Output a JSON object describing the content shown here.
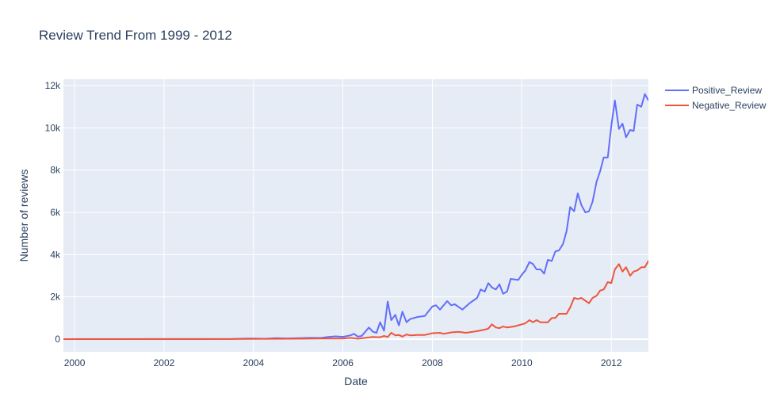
{
  "chart_data": {
    "type": "line",
    "title": "Review Trend From 1999 - 2012",
    "xlabel": "Date",
    "ylabel": "Number of reviews",
    "xlim": [
      1999.75,
      2012.83
    ],
    "ylim": [
      -600,
      12300
    ],
    "x_ticks": [
      2000,
      2002,
      2004,
      2006,
      2008,
      2010,
      2012
    ],
    "x_tick_labels": [
      "2000",
      "2002",
      "2004",
      "2006",
      "2008",
      "2010",
      "2012"
    ],
    "y_ticks": [
      0,
      2000,
      4000,
      6000,
      8000,
      10000,
      12000
    ],
    "y_tick_labels": [
      "0",
      "2k",
      "4k",
      "6k",
      "8k",
      "10k",
      "12k"
    ],
    "grid": true,
    "legend_position": "top-right",
    "colors": {
      "plot_bg": "#e5ecf6",
      "grid": "#ffffff",
      "positive": "#636efa",
      "negative": "#ef553b"
    },
    "series": [
      {
        "name": "Positive_Review",
        "color": "#636efa",
        "points": [
          [
            1999.75,
            0
          ],
          [
            2000.0,
            2
          ],
          [
            2001.0,
            3
          ],
          [
            2002.0,
            3
          ],
          [
            2003.0,
            5
          ],
          [
            2003.5,
            8
          ],
          [
            2003.83,
            30
          ],
          [
            2004.0,
            25
          ],
          [
            2004.25,
            20
          ],
          [
            2004.5,
            45
          ],
          [
            2004.75,
            35
          ],
          [
            2005.0,
            50
          ],
          [
            2005.25,
            60
          ],
          [
            2005.5,
            55
          ],
          [
            2005.67,
            100
          ],
          [
            2005.83,
            130
          ],
          [
            2006.0,
            110
          ],
          [
            2006.17,
            180
          ],
          [
            2006.25,
            250
          ],
          [
            2006.33,
            120
          ],
          [
            2006.42,
            150
          ],
          [
            2006.5,
            350
          ],
          [
            2006.58,
            550
          ],
          [
            2006.67,
            350
          ],
          [
            2006.75,
            300
          ],
          [
            2006.83,
            800
          ],
          [
            2006.92,
            400
          ],
          [
            2007.0,
            1780
          ],
          [
            2007.08,
            900
          ],
          [
            2007.17,
            1150
          ],
          [
            2007.25,
            650
          ],
          [
            2007.33,
            1300
          ],
          [
            2007.42,
            800
          ],
          [
            2007.5,
            950
          ],
          [
            2007.67,
            1050
          ],
          [
            2007.83,
            1100
          ],
          [
            2008.0,
            1550
          ],
          [
            2008.08,
            1600
          ],
          [
            2008.17,
            1400
          ],
          [
            2008.33,
            1800
          ],
          [
            2008.42,
            1600
          ],
          [
            2008.5,
            1650
          ],
          [
            2008.67,
            1400
          ],
          [
            2008.83,
            1700
          ],
          [
            2009.0,
            1950
          ],
          [
            2009.08,
            2350
          ],
          [
            2009.17,
            2250
          ],
          [
            2009.25,
            2650
          ],
          [
            2009.33,
            2450
          ],
          [
            2009.42,
            2350
          ],
          [
            2009.5,
            2600
          ],
          [
            2009.58,
            2150
          ],
          [
            2009.67,
            2250
          ],
          [
            2009.75,
            2850
          ],
          [
            2009.92,
            2800
          ],
          [
            2010.0,
            3050
          ],
          [
            2010.08,
            3250
          ],
          [
            2010.17,
            3650
          ],
          [
            2010.25,
            3550
          ],
          [
            2010.33,
            3300
          ],
          [
            2010.42,
            3300
          ],
          [
            2010.5,
            3100
          ],
          [
            2010.58,
            3750
          ],
          [
            2010.67,
            3700
          ],
          [
            2010.75,
            4150
          ],
          [
            2010.83,
            4200
          ],
          [
            2010.92,
            4500
          ],
          [
            2011.0,
            5100
          ],
          [
            2011.08,
            6250
          ],
          [
            2011.17,
            6050
          ],
          [
            2011.25,
            6900
          ],
          [
            2011.33,
            6350
          ],
          [
            2011.42,
            6000
          ],
          [
            2011.5,
            6050
          ],
          [
            2011.58,
            6500
          ],
          [
            2011.67,
            7450
          ],
          [
            2011.75,
            7950
          ],
          [
            2011.83,
            8600
          ],
          [
            2011.92,
            8600
          ],
          [
            2012.0,
            10100
          ],
          [
            2012.08,
            11300
          ],
          [
            2012.17,
            9950
          ],
          [
            2012.25,
            10200
          ],
          [
            2012.33,
            9550
          ],
          [
            2012.42,
            9900
          ],
          [
            2012.5,
            9850
          ],
          [
            2012.58,
            11100
          ],
          [
            2012.67,
            11000
          ],
          [
            2012.75,
            11600
          ],
          [
            2012.83,
            11300
          ]
        ]
      },
      {
        "name": "Negative_Review",
        "color": "#ef553b",
        "points": [
          [
            1999.75,
            0
          ],
          [
            2000.0,
            1
          ],
          [
            2001.0,
            1
          ],
          [
            2002.0,
            2
          ],
          [
            2003.0,
            2
          ],
          [
            2003.5,
            3
          ],
          [
            2003.83,
            10
          ],
          [
            2004.5,
            15
          ],
          [
            2005.0,
            20
          ],
          [
            2005.5,
            25
          ],
          [
            2006.0,
            30
          ],
          [
            2006.17,
            60
          ],
          [
            2006.33,
            20
          ],
          [
            2006.5,
            60
          ],
          [
            2006.67,
            100
          ],
          [
            2006.83,
            90
          ],
          [
            2006.92,
            150
          ],
          [
            2007.0,
            100
          ],
          [
            2007.08,
            300
          ],
          [
            2007.17,
            180
          ],
          [
            2007.25,
            200
          ],
          [
            2007.33,
            120
          ],
          [
            2007.42,
            220
          ],
          [
            2007.5,
            180
          ],
          [
            2007.67,
            200
          ],
          [
            2007.83,
            200
          ],
          [
            2008.0,
            280
          ],
          [
            2008.17,
            300
          ],
          [
            2008.25,
            250
          ],
          [
            2008.42,
            320
          ],
          [
            2008.58,
            350
          ],
          [
            2008.75,
            300
          ],
          [
            2009.0,
            380
          ],
          [
            2009.17,
            450
          ],
          [
            2009.25,
            500
          ],
          [
            2009.33,
            700
          ],
          [
            2009.42,
            550
          ],
          [
            2009.5,
            520
          ],
          [
            2009.58,
            600
          ],
          [
            2009.67,
            550
          ],
          [
            2009.83,
            600
          ],
          [
            2010.0,
            700
          ],
          [
            2010.08,
            750
          ],
          [
            2010.17,
            900
          ],
          [
            2010.25,
            800
          ],
          [
            2010.33,
            900
          ],
          [
            2010.42,
            800
          ],
          [
            2010.58,
            800
          ],
          [
            2010.67,
            1000
          ],
          [
            2010.75,
            1000
          ],
          [
            2010.83,
            1200
          ],
          [
            2011.0,
            1200
          ],
          [
            2011.08,
            1500
          ],
          [
            2011.17,
            1950
          ],
          [
            2011.25,
            1900
          ],
          [
            2011.33,
            1950
          ],
          [
            2011.5,
            1700
          ],
          [
            2011.58,
            1950
          ],
          [
            2011.67,
            2050
          ],
          [
            2011.75,
            2300
          ],
          [
            2011.83,
            2350
          ],
          [
            2011.92,
            2700
          ],
          [
            2012.0,
            2650
          ],
          [
            2012.08,
            3300
          ],
          [
            2012.17,
            3550
          ],
          [
            2012.25,
            3200
          ],
          [
            2012.33,
            3400
          ],
          [
            2012.42,
            3000
          ],
          [
            2012.5,
            3200
          ],
          [
            2012.58,
            3250
          ],
          [
            2012.67,
            3400
          ],
          [
            2012.75,
            3400
          ],
          [
            2012.83,
            3700
          ],
          [
            2012.92,
            3300
          ]
        ]
      }
    ]
  }
}
